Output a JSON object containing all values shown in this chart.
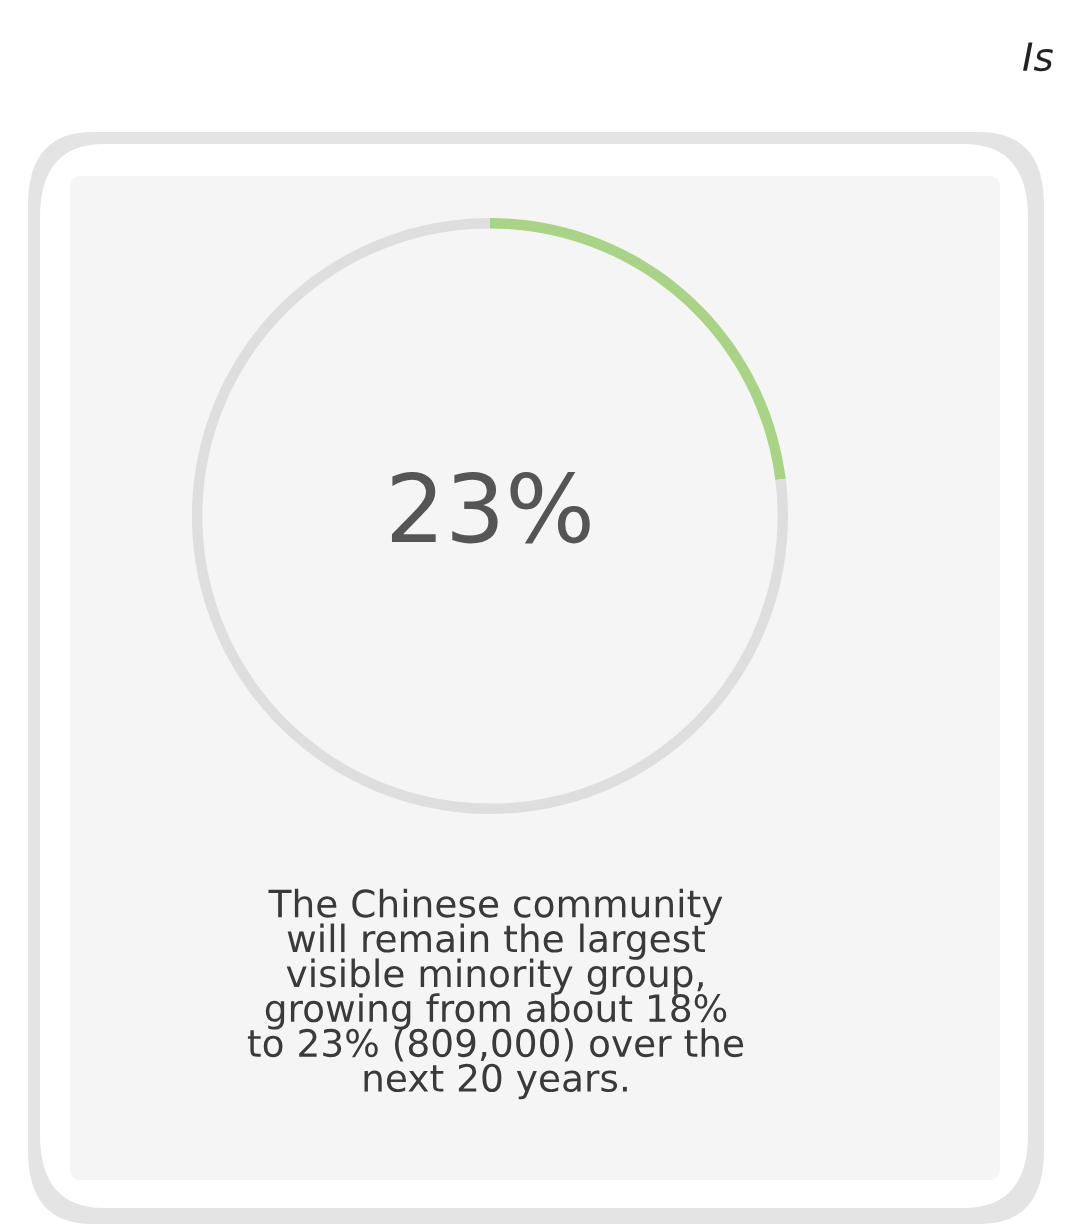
{
  "chart_data": {
    "type": "donut",
    "categories": [
      null,
      null
    ],
    "values": [
      23,
      77
    ],
    "colors": [
      "#a9d486",
      "#dedede"
    ],
    "value_labels": [
      "23%",
      null
    ],
    "legend": false,
    "annotations": [
      "Is",
      "The Chinese community\nwill remain the largest\nvisible minority group,\ngrowing from about 18%\nto 23% (809,000) over the\nnext 20 years."
    ]
  }
}
